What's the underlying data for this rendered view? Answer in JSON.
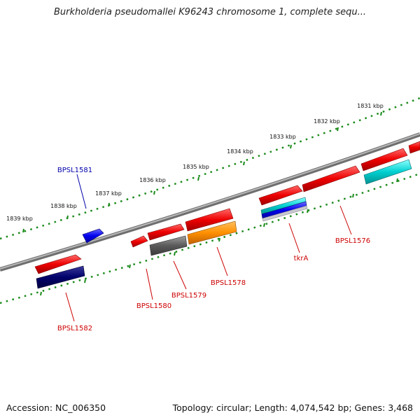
{
  "title": "Burkholderia pseudomallei K96243 chromosome 1, complete sequ...",
  "footer": {
    "accession": "Accession: NC_006350",
    "summary": "Topology: circular; Length: 4,074,542 bp; Genes: 3,468"
  },
  "scale_labels": [
    "1831 kbp",
    "1832 kbp",
    "1833 kbp",
    "1834 kbp",
    "1835 kbp",
    "1836 kbp",
    "1837 kbp",
    "1838 kbp",
    "1839 kbp"
  ],
  "gene_labels": [
    {
      "text": "BPSL1581",
      "color": "#0000aa"
    },
    {
      "text": "BPSL1582",
      "color": "#cc0000"
    },
    {
      "text": "BPSL1580",
      "color": "#cc0000"
    },
    {
      "text": "BPSL1579",
      "color": "#cc0000"
    },
    {
      "text": "BPSL1578",
      "color": "#cc0000"
    },
    {
      "text": "tkrA",
      "color": "#cc0000"
    },
    {
      "text": "BPSL1576",
      "color": "#cc0000"
    }
  ]
}
